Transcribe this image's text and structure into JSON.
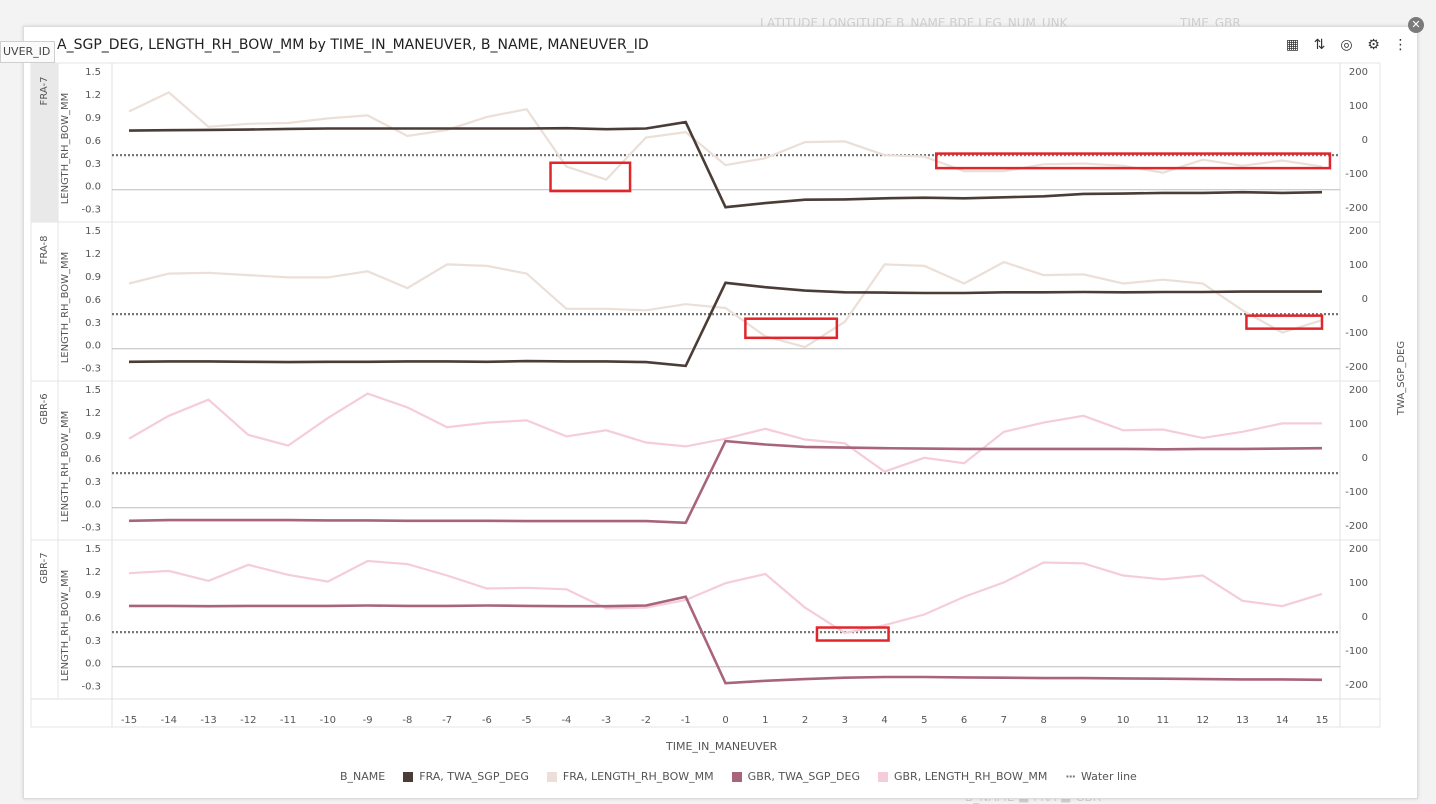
{
  "background": {
    "header_text": "LATITUDE  LONGITUDE  B_NAME  BDE  LEG_NUM_UNK",
    "header_text2": "TIME_GBR",
    "legend_text": "B_NAME  ■ FRA  ■ GBR"
  },
  "side_tag": "UVER_ID",
  "title": "A_SGP_DEG, LENGTH_RH_BOW_MM by TIME_IN_MANEUVER, B_NAME, MANEUVER_ID",
  "toolbar": {
    "icons": [
      "chart-type-icon",
      "sort-icon",
      "target-icon",
      "chart-settings-icon",
      "more-icon"
    ]
  },
  "chart_data": {
    "type": "line",
    "x_label": "TIME_IN_MANEUVER",
    "x": [
      -15,
      -14,
      -13,
      -12,
      -11,
      -10,
      -9,
      -8,
      -7,
      -6,
      -5,
      -4,
      -3,
      -2,
      -1,
      0,
      1,
      2,
      3,
      4,
      5,
      6,
      7,
      8,
      9,
      10,
      11,
      12,
      13,
      14,
      15
    ],
    "left_axis": {
      "label": "LENGTH_RH_BOW_MM",
      "ticks": [
        1.5,
        1.2,
        0.9,
        0.6,
        0.3,
        0.0,
        -0.3
      ],
      "range": [
        -0.37,
        1.5
      ]
    },
    "right_axis": {
      "label": "TWA_SGP_DEG",
      "ticks": [
        200,
        100,
        0,
        -100,
        -200
      ],
      "range": [
        -220,
        200
      ]
    },
    "water_line": 0.4,
    "legend_title": "B_NAME",
    "legend": [
      {
        "label": "FRA, TWA_SGP_DEG",
        "color": "#4a3c36",
        "style": "solid"
      },
      {
        "label": "FRA, LENGTH_RH_BOW_MM",
        "color": "#ebdfd8",
        "style": "solid"
      },
      {
        "label": "GBR, TWA_SGP_DEG",
        "color": "#a8657a",
        "style": "solid"
      },
      {
        "label": "GBR, LENGTH_RH_BOW_MM",
        "color": "#f5cdd8",
        "style": "solid"
      },
      {
        "label": "Water line",
        "color": "#777777",
        "style": "dotted"
      }
    ],
    "panels": [
      {
        "name": "FRA-7",
        "twa_color": "#4a3c36",
        "len_color": "#ebdfd8",
        "twa": [
          25,
          26,
          27,
          28,
          30,
          31,
          31,
          31,
          31,
          31,
          31,
          32,
          29,
          31,
          50,
          -200,
          -188,
          -178,
          -177,
          -174,
          -172,
          -174,
          -171,
          -168,
          -161,
          -160,
          -158,
          -158,
          -156,
          -158,
          -156
        ],
        "length": [
          0.97,
          1.22,
          0.77,
          0.81,
          0.82,
          0.88,
          0.92,
          0.65,
          0.73,
          0.9,
          1.0,
          0.25,
          0.08,
          0.63,
          0.7,
          0.27,
          0.36,
          0.57,
          0.58,
          0.4,
          0.38,
          0.19,
          0.19,
          0.28,
          0.29,
          0.26,
          0.17,
          0.34,
          0.26,
          0.33,
          0.25
        ],
        "highlights": [
          {
            "x0": -4.4,
            "x1": -2.4,
            "y0": 0.3,
            "y1": -0.07
          },
          {
            "x0": 5.3,
            "x1": 15.2,
            "y0": 0.42,
            "y1": 0.23
          }
        ]
      },
      {
        "name": "FRA-8",
        "twa_color": "#4a3c36",
        "len_color": "#ebdfd8",
        "twa": [
          -187,
          -186,
          -186,
          -187,
          -188,
          -187,
          -187,
          -186,
          -186,
          -187,
          -185,
          -186,
          -186,
          -188,
          -199,
          45,
          32,
          22,
          17,
          16,
          15,
          15,
          17,
          17,
          18,
          17,
          18,
          18,
          19,
          19,
          19
        ],
        "length": [
          0.8,
          0.93,
          0.94,
          0.91,
          0.88,
          0.88,
          0.96,
          0.74,
          1.05,
          1.03,
          0.93,
          0.47,
          0.47,
          0.45,
          0.53,
          0.48,
          0.11,
          -0.03,
          0.3,
          1.05,
          1.03,
          0.8,
          1.08,
          0.91,
          0.92,
          0.8,
          0.85,
          0.8,
          0.45,
          0.16,
          0.32
        ],
        "highlights": [
          {
            "x0": 0.5,
            "x1": 2.8,
            "y0": 0.34,
            "y1": 0.09
          },
          {
            "x0": 13.1,
            "x1": 15.0,
            "y0": 0.38,
            "y1": 0.21
          }
        ]
      },
      {
        "name": "GBR-6",
        "twa_color": "#a8657a",
        "len_color": "#f5cdd8",
        "twa": [
          -187,
          -185,
          -185,
          -185,
          -185,
          -186,
          -186,
          -187,
          -187,
          -187,
          -188,
          -188,
          -188,
          -188,
          -193,
          47,
          37,
          30,
          28,
          26,
          25,
          24,
          24,
          24,
          24,
          24,
          23,
          24,
          24,
          25,
          26
        ],
        "length": [
          0.85,
          1.15,
          1.36,
          0.9,
          0.76,
          1.12,
          1.44,
          1.26,
          1.0,
          1.06,
          1.09,
          0.88,
          0.96,
          0.8,
          0.75,
          0.85,
          0.98,
          0.84,
          0.79,
          0.42,
          0.6,
          0.53,
          0.94,
          1.06,
          1.15,
          0.96,
          0.97,
          0.86,
          0.94,
          1.05,
          1.05
        ],
        "highlights": []
      },
      {
        "name": "GBR-7",
        "twa_color": "#a8657a",
        "len_color": "#f5cdd8",
        "twa": [
          30,
          30,
          29,
          30,
          30,
          30,
          31,
          30,
          30,
          31,
          30,
          29,
          29,
          31,
          57,
          -197,
          -190,
          -185,
          -181,
          -179,
          -179,
          -180,
          -181,
          -182,
          -182,
          -183,
          -184,
          -185,
          -186,
          -186,
          -187
        ],
        "length": [
          1.17,
          1.2,
          1.07,
          1.28,
          1.15,
          1.06,
          1.33,
          1.29,
          1.14,
          0.97,
          0.98,
          0.96,
          0.71,
          0.72,
          0.82,
          1.04,
          1.16,
          0.72,
          0.39,
          0.49,
          0.63,
          0.86,
          1.05,
          1.31,
          1.3,
          1.14,
          1.09,
          1.14,
          0.81,
          0.74,
          0.9
        ],
        "highlights": [
          {
            "x0": 2.3,
            "x1": 4.1,
            "y0": 0.46,
            "y1": 0.29
          }
        ]
      }
    ]
  }
}
